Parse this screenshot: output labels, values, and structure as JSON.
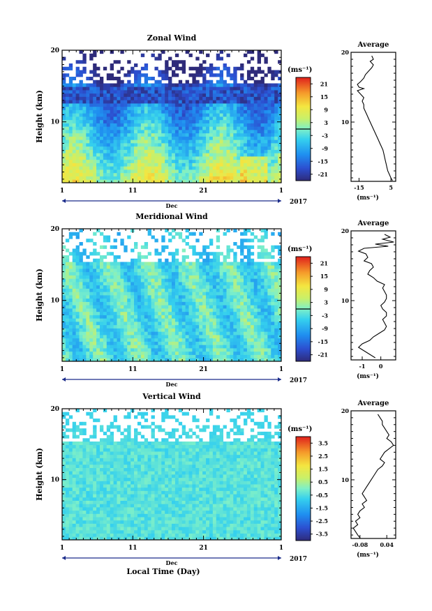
{
  "figure": {
    "xlabel_bottom": "Local Time (Day)",
    "month_label": "Dec",
    "year_label": "2017",
    "x_ticks": [
      "1",
      "11",
      "21",
      "1"
    ],
    "y_ticks": [
      "20",
      "10"
    ],
    "unit_label": "(ms⁻¹)",
    "avg_unit_label": "(ms⁻¹)"
  },
  "chart_data": [
    {
      "type": "heatmap",
      "title": "Zonal Wind",
      "ylabel": "Height (km)",
      "xlim_day": [
        1,
        32
      ],
      "ylim_km": [
        1.5,
        20
      ],
      "colorbar": {
        "ticks": [
          "21",
          "15",
          "9",
          "3",
          "-3",
          "-9",
          "-15",
          "-21"
        ],
        "range": [
          -24,
          24
        ],
        "zero_line": true
      },
      "average": {
        "title": "Average",
        "xticks": [
          "-15",
          "5"
        ],
        "xlim": [
          -20,
          8
        ],
        "profile": [
          [
            -7,
            19.5
          ],
          [
            -6,
            19
          ],
          [
            -8,
            18.7
          ],
          [
            -6,
            18.2
          ],
          [
            -7,
            17.8
          ],
          [
            -9,
            17.3
          ],
          [
            -11,
            16.8
          ],
          [
            -12,
            16.3
          ],
          [
            -14,
            15.8
          ],
          [
            -16,
            15.4
          ],
          [
            -15,
            15.0
          ],
          [
            -12,
            14.8
          ],
          [
            -16,
            14.5
          ],
          [
            -14,
            14.0
          ],
          [
            -12,
            13.5
          ],
          [
            -13,
            13.0
          ],
          [
            -12,
            12.5
          ],
          [
            -12,
            12.0
          ],
          [
            -11,
            11.5
          ],
          [
            -10,
            11.0
          ],
          [
            -9,
            10.5
          ],
          [
            -8,
            10.0
          ],
          [
            -7,
            9.5
          ],
          [
            -6,
            9.0
          ],
          [
            -5,
            8.5
          ],
          [
            -4,
            8.0
          ],
          [
            -3,
            7.5
          ],
          [
            -2,
            7.0
          ],
          [
            -1,
            6.5
          ],
          [
            0,
            6.0
          ],
          [
            0.5,
            5.5
          ],
          [
            1,
            5.0
          ],
          [
            1.5,
            4.5
          ],
          [
            2,
            4.0
          ],
          [
            2.5,
            3.5
          ],
          [
            3,
            3.0
          ],
          [
            4,
            2.5
          ],
          [
            5,
            2.0
          ],
          [
            6,
            1.6
          ]
        ]
      }
    },
    {
      "type": "heatmap",
      "title": "Meridional Wind",
      "ylabel": "Height (km)",
      "xlim_day": [
        1,
        32
      ],
      "ylim_km": [
        1.5,
        20
      ],
      "colorbar": {
        "ticks": [
          "21",
          "15",
          "9",
          "3",
          "-3",
          "-9",
          "-15",
          "-21"
        ],
        "range": [
          -24,
          24
        ],
        "zero_line": true
      },
      "average": {
        "title": "Average",
        "xticks": [
          "-1",
          "0"
        ],
        "xlim": [
          -1.6,
          0.8
        ],
        "profile": [
          [
            0.2,
            19.5
          ],
          [
            0.5,
            19.1
          ],
          [
            0.1,
            18.8
          ],
          [
            0.7,
            18.4
          ],
          [
            -0.3,
            18.1
          ],
          [
            0.4,
            17.8
          ],
          [
            -0.9,
            17.5
          ],
          [
            -1.2,
            17.1
          ],
          [
            -0.8,
            16.7
          ],
          [
            -0.7,
            16.2
          ],
          [
            -0.9,
            15.7
          ],
          [
            -0.5,
            15.3
          ],
          [
            -0.4,
            14.8
          ],
          [
            -0.6,
            14.3
          ],
          [
            -0.7,
            13.8
          ],
          [
            -0.4,
            13.3
          ],
          [
            -0.2,
            12.8
          ],
          [
            0.2,
            12.3
          ],
          [
            0.1,
            11.8
          ],
          [
            0.2,
            11.3
          ],
          [
            0.3,
            10.8
          ],
          [
            0.3,
            10.3
          ],
          [
            0.2,
            9.8
          ],
          [
            0.0,
            9.3
          ],
          [
            0.1,
            8.8
          ],
          [
            0.3,
            8.3
          ],
          [
            0.3,
            7.8
          ],
          [
            0.1,
            7.3
          ],
          [
            0.2,
            6.8
          ],
          [
            0.3,
            6.3
          ],
          [
            0.2,
            5.8
          ],
          [
            -0.1,
            5.3
          ],
          [
            -0.4,
            4.8
          ],
          [
            -0.6,
            4.3
          ],
          [
            -1.0,
            3.8
          ],
          [
            -1.2,
            3.3
          ],
          [
            -0.9,
            2.8
          ],
          [
            -0.6,
            2.3
          ],
          [
            -0.3,
            1.8
          ]
        ]
      }
    },
    {
      "type": "heatmap",
      "title": "Vertical Wind",
      "ylabel": "Height (km)",
      "xlim_day": [
        1,
        32
      ],
      "ylim_km": [
        1.5,
        20
      ],
      "colorbar": {
        "ticks": [
          "3.5",
          "2.5",
          "1.5",
          "0.5",
          "-0.5",
          "-1.5",
          "-2.5",
          "-3.5"
        ],
        "range": [
          -4,
          4
        ],
        "zero_line": false
      },
      "average": {
        "title": "Average",
        "xticks": [
          "-0.08",
          "0.04"
        ],
        "xlim": [
          -0.12,
          0.08
        ],
        "profile": [
          [
            0.0,
            19.5
          ],
          [
            0.01,
            19.0
          ],
          [
            0.02,
            18.5
          ],
          [
            0.02,
            18.0
          ],
          [
            0.03,
            17.5
          ],
          [
            0.04,
            17.0
          ],
          [
            0.05,
            16.5
          ],
          [
            0.04,
            16.0
          ],
          [
            0.06,
            15.5
          ],
          [
            0.07,
            15.0
          ],
          [
            0.05,
            14.5
          ],
          [
            0.03,
            14.0
          ],
          [
            0.02,
            13.5
          ],
          [
            0.01,
            13.0
          ],
          [
            0.03,
            12.5
          ],
          [
            0.02,
            12.0
          ],
          [
            0.0,
            11.5
          ],
          [
            -0.01,
            11.0
          ],
          [
            -0.02,
            10.5
          ],
          [
            -0.03,
            10.0
          ],
          [
            -0.04,
            9.5
          ],
          [
            -0.05,
            9.0
          ],
          [
            -0.06,
            8.5
          ],
          [
            -0.07,
            8.0
          ],
          [
            -0.06,
            7.5
          ],
          [
            -0.05,
            7.0
          ],
          [
            -0.07,
            6.5
          ],
          [
            -0.06,
            6.0
          ],
          [
            -0.08,
            5.5
          ],
          [
            -0.09,
            5.0
          ],
          [
            -0.08,
            4.5
          ],
          [
            -0.1,
            4.0
          ],
          [
            -0.09,
            3.5
          ],
          [
            -0.11,
            3.0
          ],
          [
            -0.1,
            2.5
          ],
          [
            -0.09,
            2.0
          ],
          [
            -0.08,
            1.6
          ]
        ]
      }
    }
  ]
}
